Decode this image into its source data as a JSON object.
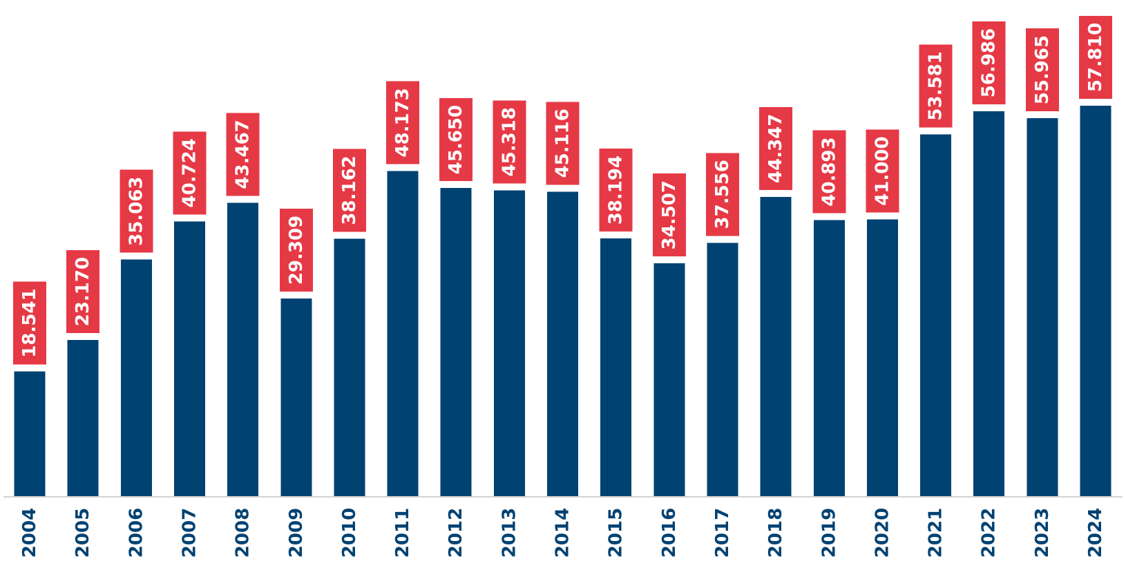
{
  "chart_data": {
    "type": "bar",
    "categories": [
      "2004",
      "2005",
      "2006",
      "2007",
      "2008",
      "2009",
      "2010",
      "2011",
      "2012",
      "2013",
      "2014",
      "2015",
      "2016",
      "2017",
      "2018",
      "2019",
      "2020",
      "2021",
      "2022",
      "2023",
      "2024"
    ],
    "values": [
      18541,
      23170,
      35063,
      40724,
      43467,
      29309,
      38162,
      48173,
      45650,
      45318,
      45116,
      38194,
      34507,
      37556,
      44347,
      40893,
      41000,
      53581,
      56986,
      55965,
      57810
    ],
    "data_labels": [
      "18.541",
      "23.170",
      "35.063",
      "40.724",
      "43.467",
      "29.309",
      "38.162",
      "48.173",
      "45.650",
      "45.318",
      "45.116",
      "38.194",
      "34.507",
      "37.556",
      "44.347",
      "40.893",
      "41.000",
      "53.581",
      "56.986",
      "55.965",
      "57.810"
    ],
    "ylim": [
      0,
      62000
    ],
    "grid": false,
    "legend": "none",
    "label_orientation": "vertical",
    "colors": {
      "bar": "#004272",
      "label_box": "#e63946",
      "label_text": "#ffffff",
      "axis_line": "#d3d3d3",
      "tick_text": "#004272"
    }
  }
}
